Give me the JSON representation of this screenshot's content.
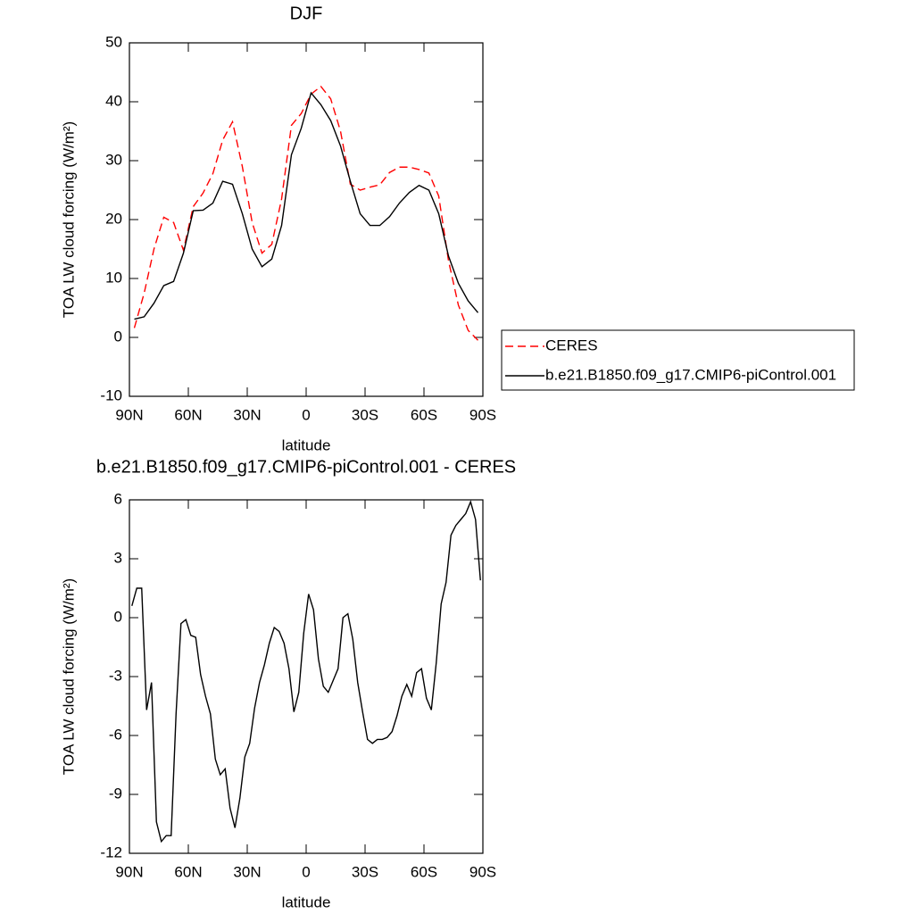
{
  "chart_data": [
    {
      "type": "line",
      "title": "DJF",
      "xlabel": "latitude",
      "ylabel": "TOA LW cloud forcing (W/m²)",
      "x": [
        87.5,
        82.5,
        77.5,
        72.5,
        67.5,
        62.5,
        57.5,
        52.5,
        47.5,
        42.5,
        37.5,
        32.5,
        27.5,
        22.5,
        17.5,
        12.5,
        7.5,
        2.5,
        -2.5,
        -7.5,
        -12.5,
        -17.5,
        -22.5,
        -27.5,
        -32.5,
        -37.5,
        -42.5,
        -47.5,
        -52.5,
        -57.5,
        -62.5,
        -67.5,
        -72.5,
        -77.5,
        -82.5,
        -87.5
      ],
      "series": [
        {
          "name": "CERES",
          "color": "#ff0000",
          "dashed": true,
          "values": [
            1.6,
            7.5,
            15.0,
            20.4,
            19.5,
            14.8,
            22.2,
            24.5,
            27.8,
            33.5,
            36.6,
            29.0,
            19.5,
            14.3,
            15.8,
            23.5,
            36.0,
            38.0,
            41.3,
            42.6,
            40.5,
            35.0,
            26.0,
            25.0,
            25.5,
            25.9,
            28.0,
            28.9,
            28.9,
            28.5,
            27.9,
            24.0,
            13.0,
            5.5,
            1.2,
            -0.5
          ]
        },
        {
          "name": "b.e21.B1850.f09_g17.CMIP6-piControl.001",
          "color": "#000000",
          "dashed": false,
          "values": [
            3.1,
            3.5,
            5.8,
            8.8,
            9.5,
            14.3,
            21.5,
            21.6,
            22.8,
            26.5,
            26.0,
            21.0,
            15.0,
            12.0,
            13.3,
            19.0,
            31.0,
            35.5,
            41.5,
            39.5,
            36.8,
            32.5,
            26.5,
            21.0,
            19.0,
            19.0,
            20.5,
            22.8,
            24.6,
            25.8,
            25.0,
            21.0,
            13.8,
            9.2,
            6.2,
            4.2
          ]
        }
      ],
      "xlim": [
        90,
        -90
      ],
      "xticks": [
        {
          "value": 90,
          "label": "90N"
        },
        {
          "value": 60,
          "label": "60N"
        },
        {
          "value": 30,
          "label": "30N"
        },
        0,
        {
          "value": -30,
          "label": "30S"
        },
        {
          "value": -60,
          "label": "60S"
        },
        {
          "value": -90,
          "label": "90S"
        }
      ],
      "ylim": [
        -10,
        50
      ],
      "yticks": [
        -10,
        0,
        10,
        20,
        30,
        40,
        50
      ],
      "legend": "right"
    },
    {
      "type": "line",
      "title": "b.e21.B1850.f09_g17.CMIP6-piControl.001 - CERES",
      "xlabel": "latitude",
      "ylabel": "TOA LW cloud forcing (W/m²)",
      "x": [
        88.75,
        86.25,
        83.75,
        81.25,
        78.75,
        76.25,
        73.75,
        71.25,
        68.75,
        66.25,
        63.75,
        61.25,
        58.75,
        56.25,
        53.75,
        51.25,
        48.75,
        46.25,
        43.75,
        41.25,
        38.75,
        36.25,
        33.75,
        31.25,
        28.75,
        26.25,
        23.75,
        21.25,
        18.75,
        16.25,
        13.75,
        11.25,
        8.75,
        6.25,
        3.75,
        1.25,
        -1.25,
        -3.75,
        -6.25,
        -8.75,
        -11.25,
        -13.75,
        -16.25,
        -18.75,
        -21.25,
        -23.75,
        -26.25,
        -28.75,
        -31.25,
        -33.75,
        -36.25,
        -38.75,
        -41.25,
        -43.75,
        -46.25,
        -48.75,
        -51.25,
        -53.75,
        -56.25,
        -58.75,
        -61.25,
        -63.75,
        -66.25,
        -68.75,
        -71.25,
        -73.75,
        -76.25,
        -78.75,
        -81.25,
        -83.75,
        -86.25,
        -88.75
      ],
      "values": [
        0.6,
        1.5,
        1.5,
        -4.7,
        -3.3,
        -10.4,
        -11.4,
        -11.1,
        -11.1,
        -4.9,
        -0.3,
        -0.1,
        -0.9,
        -1.0,
        -2.9,
        -4.0,
        -4.9,
        -7.2,
        -8.0,
        -7.7,
        -9.7,
        -10.7,
        -9.2,
        -7.1,
        -6.4,
        -4.6,
        -3.3,
        -2.4,
        -1.3,
        -0.5,
        -0.7,
        -1.3,
        -2.6,
        -4.8,
        -3.8,
        -0.8,
        1.2,
        0.4,
        -2.1,
        -3.5,
        -3.8,
        -3.2,
        -2.6,
        0.0,
        0.2,
        -1.1,
        -3.3,
        -4.8,
        -6.2,
        -6.4,
        -6.2,
        -6.2,
        -6.1,
        -5.8,
        -5.0,
        -4.0,
        -3.4,
        -4.0,
        -2.8,
        -2.6,
        -4.1,
        -4.7,
        -2.3,
        0.7,
        1.8,
        4.2,
        4.7,
        5.0,
        5.3,
        5.9,
        5.0,
        1.9
      ],
      "color": "#000000",
      "xlim": [
        90,
        -90
      ],
      "xticks": [
        {
          "value": 90,
          "label": "90N"
        },
        {
          "value": 60,
          "label": "60N"
        },
        {
          "value": 30,
          "label": "30N"
        },
        0,
        {
          "value": -30,
          "label": "30S"
        },
        {
          "value": -60,
          "label": "60S"
        },
        {
          "value": -90,
          "label": "90S"
        }
      ],
      "ylim": [
        -12,
        6
      ],
      "yticks": [
        -12,
        -9,
        -6,
        -3,
        0,
        3,
        6
      ]
    }
  ]
}
